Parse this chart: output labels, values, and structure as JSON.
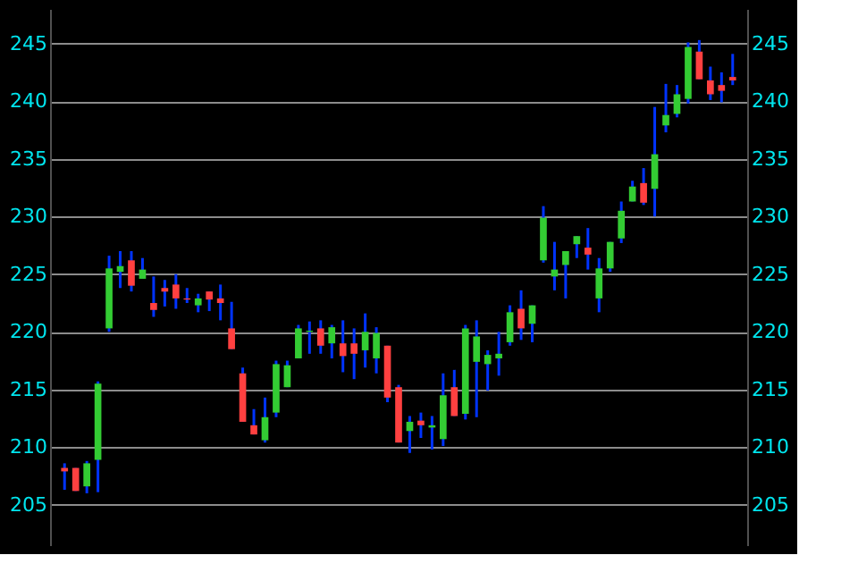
{
  "chart_data": {
    "type": "candlestick",
    "categories": [
      null,
      null,
      null,
      null,
      null,
      null,
      null,
      null,
      null,
      null,
      null,
      null,
      null,
      null,
      null,
      null,
      null,
      null,
      null,
      null,
      null,
      null,
      null,
      null,
      null,
      null,
      null,
      null,
      null,
      null,
      null,
      null,
      null,
      null,
      null,
      null,
      null,
      null,
      null,
      null,
      null,
      null,
      null,
      null,
      null,
      null,
      null,
      null,
      null,
      null,
      null,
      null,
      null,
      null,
      null,
      null,
      null,
      null,
      null,
      null,
      null
    ],
    "ohlc": [
      [
        208.2,
        208.6,
        206.3,
        207.9
      ],
      [
        208.2,
        208.2,
        206.2,
        206.2
      ],
      [
        206.6,
        208.8,
        206.0,
        208.6
      ],
      [
        208.9,
        215.7,
        206.1,
        215.5
      ],
      [
        220.3,
        226.6,
        220.0,
        225.5
      ],
      [
        225.2,
        227.0,
        223.8,
        225.7
      ],
      [
        226.2,
        227.0,
        223.5,
        224.0
      ],
      [
        224.6,
        226.4,
        224.6,
        225.4
      ],
      [
        222.5,
        224.8,
        221.3,
        221.9
      ],
      [
        223.8,
        224.5,
        222.2,
        223.5
      ],
      [
        224.1,
        225.0,
        222.0,
        222.9
      ],
      [
        222.9,
        223.8,
        222.5,
        222.8
      ],
      [
        222.3,
        223.3,
        221.7,
        222.9
      ],
      [
        223.5,
        223.5,
        221.8,
        222.8
      ],
      [
        222.9,
        224.1,
        221.0,
        222.5
      ],
      [
        220.3,
        222.6,
        218.5,
        218.5
      ],
      [
        216.4,
        216.9,
        212.2,
        212.2
      ],
      [
        211.9,
        213.3,
        211.1,
        211.1
      ],
      [
        210.6,
        214.3,
        210.4,
        212.6
      ],
      [
        213.0,
        217.5,
        212.6,
        217.2
      ],
      [
        215.2,
        217.5,
        215.2,
        217.1
      ],
      [
        217.7,
        220.6,
        217.7,
        220.3
      ],
      [
        220.0,
        220.9,
        218.1,
        220.1
      ],
      [
        220.3,
        221.0,
        218.1,
        218.8
      ],
      [
        219.0,
        220.6,
        217.7,
        220.4
      ],
      [
        219.0,
        221.0,
        216.5,
        217.9
      ],
      [
        219.0,
        220.3,
        215.9,
        218.1
      ],
      [
        218.4,
        221.6,
        216.9,
        220.0
      ],
      [
        217.7,
        220.4,
        216.4,
        219.9
      ],
      [
        218.8,
        218.8,
        213.9,
        214.3
      ],
      [
        215.2,
        215.4,
        210.4,
        210.4
      ],
      [
        211.4,
        212.7,
        209.5,
        212.2
      ],
      [
        212.3,
        213.0,
        210.8,
        211.9
      ],
      [
        211.7,
        212.7,
        209.8,
        211.9
      ],
      [
        210.7,
        216.4,
        210.1,
        214.5
      ],
      [
        215.2,
        216.7,
        212.7,
        212.7
      ],
      [
        212.9,
        220.6,
        212.4,
        220.3
      ],
      [
        217.4,
        221.0,
        212.6,
        219.6
      ],
      [
        217.2,
        218.4,
        214.9,
        218.0
      ],
      [
        217.7,
        220.0,
        216.2,
        218.1
      ],
      [
        219.1,
        222.3,
        218.8,
        221.7
      ],
      [
        222.0,
        223.6,
        219.3,
        220.3
      ],
      [
        220.7,
        222.3,
        219.1,
        222.3
      ],
      [
        226.2,
        230.9,
        226.0,
        229.9
      ],
      [
        224.8,
        227.8,
        223.6,
        225.4
      ],
      [
        225.8,
        227.0,
        222.9,
        227.0
      ],
      [
        227.6,
        228.3,
        226.4,
        228.3
      ],
      [
        227.3,
        229.0,
        225.4,
        226.7
      ],
      [
        222.9,
        226.4,
        221.7,
        225.5
      ],
      [
        225.5,
        227.8,
        225.2,
        227.8
      ],
      [
        228.1,
        231.3,
        227.7,
        230.5
      ],
      [
        231.3,
        233.1,
        231.3,
        232.6
      ],
      [
        232.9,
        234.2,
        231.0,
        231.2
      ],
      [
        232.4,
        239.5,
        230.0,
        235.4
      ],
      [
        237.9,
        241.5,
        237.3,
        238.8
      ],
      [
        238.9,
        241.4,
        238.6,
        240.6
      ],
      [
        240.2,
        245.1,
        239.8,
        244.7
      ],
      [
        244.3,
        245.3,
        241.9,
        241.9
      ],
      [
        241.8,
        243.0,
        240.1,
        240.6
      ],
      [
        241.4,
        242.5,
        239.9,
        240.9
      ],
      [
        242.1,
        244.1,
        241.4,
        241.8
      ]
    ],
    "colors": [
      "#ff4040",
      "#ff4040",
      "#33cc33",
      "#33cc33",
      "#33cc33",
      "#33cc33",
      "#ff4040",
      "#33cc33",
      "#ff4040",
      "#ff4040",
      "#ff4040",
      "#ff4040",
      "#33cc33",
      "#ff4040",
      "#ff4040",
      "#ff4040",
      "#ff4040",
      "#ff4040",
      "#33cc33",
      "#33cc33",
      "#33cc33",
      "#33cc33",
      "#33cc33",
      "#ff4040",
      "#33cc33",
      "#ff4040",
      "#ff4040",
      "#33cc33",
      "#33cc33",
      "#ff4040",
      "#ff4040",
      "#33cc33",
      "#ff4040",
      "#33cc33",
      "#33cc33",
      "#ff4040",
      "#33cc33",
      "#33cc33",
      "#33cc33",
      "#33cc33",
      "#33cc33",
      "#ff4040",
      "#33cc33",
      "#33cc33",
      "#33cc33",
      "#33cc33",
      "#33cc33",
      "#ff4040",
      "#33cc33",
      "#33cc33",
      "#33cc33",
      "#33cc33",
      "#ff4040",
      "#33cc33",
      "#33cc33",
      "#33cc33",
      "#33cc33",
      "#ff4040",
      "#ff4040",
      "#ff4040",
      "#ff4040"
    ],
    "ylim": [
      201.5,
      248
    ],
    "yticks": [
      205,
      210,
      215,
      220,
      225,
      230,
      235,
      240,
      245
    ],
    "y2lim": [
      201.5,
      248
    ],
    "y2ticks": [
      205,
      210,
      215,
      220,
      225,
      230,
      235,
      240,
      245
    ],
    "grid": "y",
    "tick_labels": "y"
  }
}
